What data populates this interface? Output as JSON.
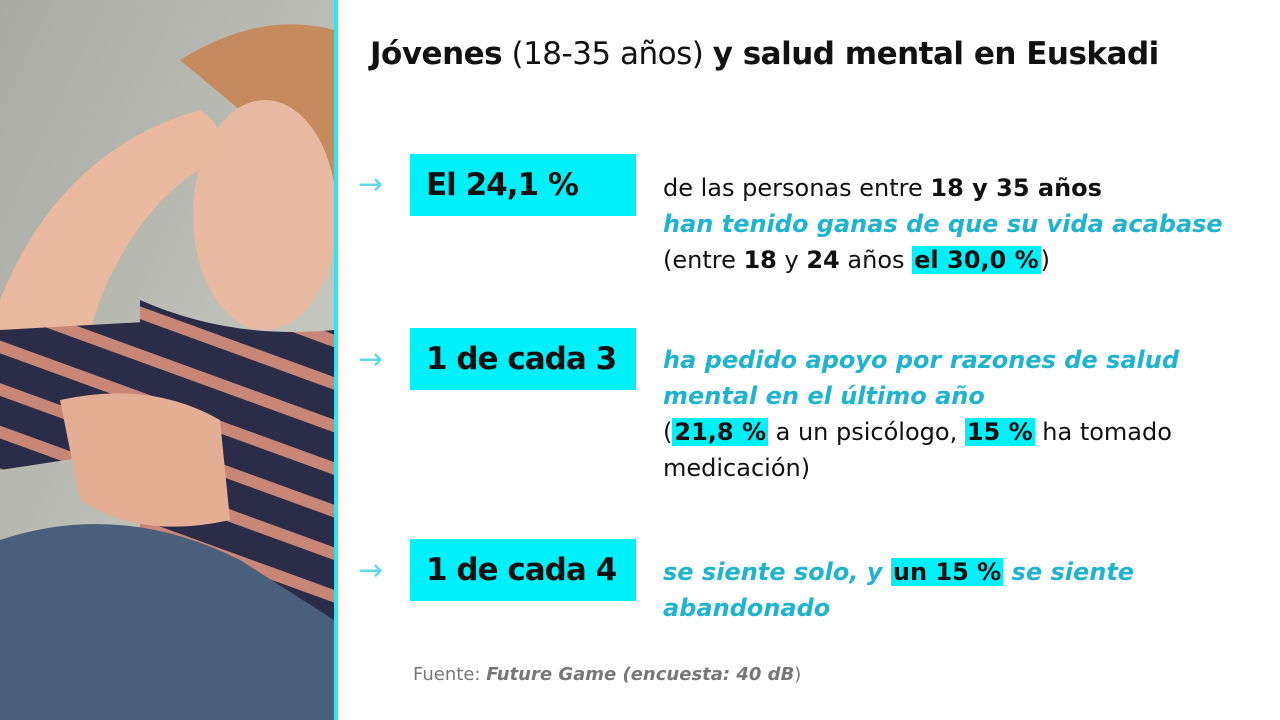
{
  "title": {
    "part1": "Jóvenes",
    "part2": " (18-35 años) ",
    "part3": "y salud mental en Euskadi"
  },
  "stats": [
    {
      "arrow": "→",
      "box": "El 24,1 %",
      "l1a": "de las personas entre ",
      "l1b": "18 y 35 años",
      "l2": "han tenido ganas de que su vida acabase",
      "l3a": "(entre ",
      "l3b": "18",
      "l3c": " y ",
      "l3d": "24",
      "l3e": " años ",
      "l3f": "el 30,0 %",
      "l3g": ")"
    },
    {
      "arrow": "→",
      "box": "1 de cada 3",
      "l1": "ha pedido apoyo por razones de salud",
      "l2": "mental en el último año",
      "l3a": "(",
      "l3b": "21,8 %",
      "l3c": " a un psicólogo, ",
      "l3d": "15 %",
      "l3e": " ha tomado",
      "l4": "medicación)"
    },
    {
      "arrow": "→",
      "box": "1 de cada 4",
      "l1a": "se siente solo, y ",
      "l1b": "un 15 %",
      "l1c": " se siente",
      "l2": "abandonado"
    }
  ],
  "source": {
    "label": "Fuente: ",
    "name": "Future Game (encuesta: 40 dB",
    "close": ")"
  },
  "colors": {
    "accent": "#00f0fa",
    "teal_text": "#1fb3cf"
  }
}
